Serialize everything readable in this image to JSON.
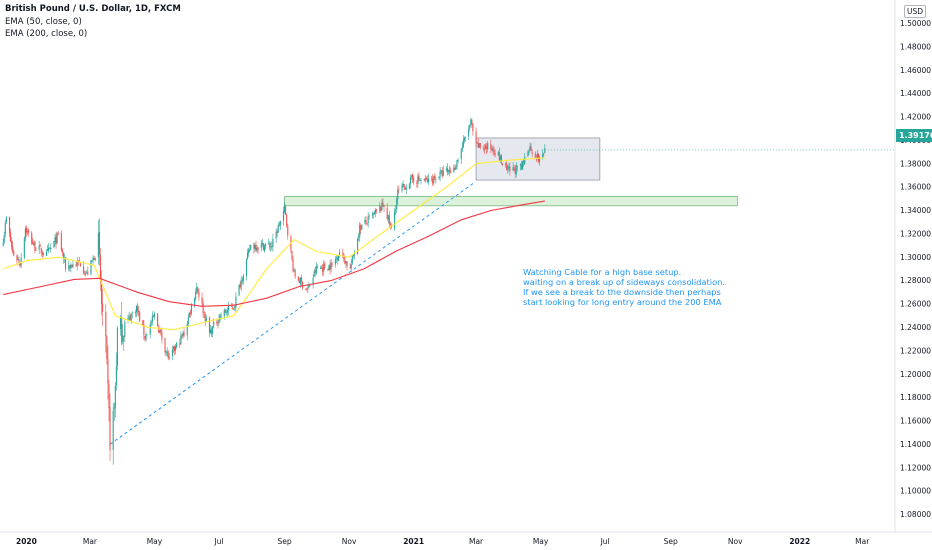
{
  "header": {
    "title": "British Pound / U.S. Dollar, 1D, FXCM",
    "indicator_1": "EMA (50, close, 0)",
    "indicator_2": "EMA (200, close, 0)",
    "currency_badge": "USD"
  },
  "annotation": {
    "line_1": "Watching Cable for a high base setup.",
    "line_2": "waiting on a break up of sideways consolidation.",
    "line_3": "If we see a break to the downside then perhaps",
    "line_4": "start looking for long entry around the 200 EMA"
  },
  "last_price": "1.39176",
  "colors": {
    "up": "#26a69a",
    "down": "#ef5350",
    "ema50": "#ffeb3b",
    "ema200": "#f23645",
    "trendline": "#2196f3",
    "zone_box": "#e3e6ee",
    "support_zone": "#d8efd6",
    "price_tag": "#26a69a"
  },
  "chart_data": {
    "type": "candlestick",
    "title": "British Pound / U.S. Dollar, 1D, FXCM",
    "x_ticks": [
      "2020",
      "Mar",
      "May",
      "Jul",
      "Sep",
      "Nov",
      "2021",
      "Mar",
      "May",
      "Jul",
      "Sep",
      "Nov",
      "2022",
      "Mar"
    ],
    "y_ticks": [
      "1.08000",
      "1.10000",
      "1.12000",
      "1.14000",
      "1.16000",
      "1.18000",
      "1.20000",
      "1.22000",
      "1.24000",
      "1.26000",
      "1.28000",
      "1.30000",
      "1.32000",
      "1.34000",
      "1.36000",
      "1.38000",
      "1.40000",
      "1.42000",
      "1.44000",
      "1.46000",
      "1.48000",
      "1.50000"
    ],
    "ylim": [
      1.065,
      1.52
    ],
    "xlim": [
      "2019-12-07",
      "2022-04-01"
    ],
    "close_path": [
      [
        "2019-12-10",
        1.316
      ],
      [
        "2019-12-13",
        1.333
      ],
      [
        "2019-12-19",
        1.304
      ],
      [
        "2019-12-26",
        1.295
      ],
      [
        "2019-12-31",
        1.325
      ],
      [
        "2020-01-08",
        1.31
      ],
      [
        "2020-01-20",
        1.302
      ],
      [
        "2020-01-31",
        1.318
      ],
      [
        "2020-02-07",
        1.292
      ],
      [
        "2020-02-21",
        1.295
      ],
      [
        "2020-02-27",
        1.285
      ],
      [
        "2020-03-09",
        1.31
      ],
      [
        "2020-03-12",
        1.26
      ],
      [
        "2020-03-16",
        1.22
      ],
      [
        "2020-03-20",
        1.145
      ],
      [
        "2020-03-24",
        1.17
      ],
      [
        "2020-03-27",
        1.235
      ],
      [
        "2020-04-01",
        1.24
      ],
      [
        "2020-04-14",
        1.257
      ],
      [
        "2020-04-22",
        1.232
      ],
      [
        "2020-05-01",
        1.25
      ],
      [
        "2020-05-15",
        1.212
      ],
      [
        "2020-05-18",
        1.218
      ],
      [
        "2020-05-29",
        1.235
      ],
      [
        "2020-06-10",
        1.275
      ],
      [
        "2020-06-22",
        1.235
      ],
      [
        "2020-07-02",
        1.25
      ],
      [
        "2020-07-15",
        1.258
      ],
      [
        "2020-07-31",
        1.31
      ],
      [
        "2020-08-20",
        1.31
      ],
      [
        "2020-09-01",
        1.341
      ],
      [
        "2020-09-10",
        1.285
      ],
      [
        "2020-09-23",
        1.272
      ],
      [
        "2020-10-01",
        1.29
      ],
      [
        "2020-10-16",
        1.293
      ],
      [
        "2020-10-23",
        1.305
      ],
      [
        "2020-11-02",
        1.29
      ],
      [
        "2020-11-11",
        1.325
      ],
      [
        "2020-11-23",
        1.335
      ],
      [
        "2020-12-04",
        1.345
      ],
      [
        "2020-12-11",
        1.323
      ],
      [
        "2020-12-17",
        1.355
      ],
      [
        "2020-12-31",
        1.367
      ],
      [
        "2021-01-15",
        1.365
      ],
      [
        "2021-01-29",
        1.372
      ],
      [
        "2021-02-08",
        1.375
      ],
      [
        "2021-02-24",
        1.415
      ],
      [
        "2021-03-01",
        1.395
      ],
      [
        "2021-03-18",
        1.393
      ],
      [
        "2021-03-30",
        1.374
      ],
      [
        "2021-04-13",
        1.376
      ],
      [
        "2021-04-20",
        1.395
      ],
      [
        "2021-04-30",
        1.383
      ],
      [
        "2021-05-05",
        1.392
      ]
    ],
    "ema_50": [
      [
        "2019-12-10",
        1.29
      ],
      [
        "2020-01-01",
        1.297
      ],
      [
        "2020-02-01",
        1.3
      ],
      [
        "2020-03-05",
        1.293
      ],
      [
        "2020-03-25",
        1.25
      ],
      [
        "2020-04-25",
        1.24
      ],
      [
        "2020-05-20",
        1.238
      ],
      [
        "2020-06-20",
        1.245
      ],
      [
        "2020-07-15",
        1.25
      ],
      [
        "2020-08-15",
        1.29
      ],
      [
        "2020-09-10",
        1.315
      ],
      [
        "2020-10-01",
        1.305
      ],
      [
        "2020-11-01",
        1.3
      ],
      [
        "2020-12-01",
        1.32
      ],
      [
        "2021-01-01",
        1.34
      ],
      [
        "2021-02-01",
        1.36
      ],
      [
        "2021-03-01",
        1.38
      ],
      [
        "2021-04-01",
        1.383
      ],
      [
        "2021-05-05",
        1.385
      ]
    ],
    "ema_200": [
      [
        "2019-12-10",
        1.268
      ],
      [
        "2020-01-15",
        1.275
      ],
      [
        "2020-02-15",
        1.281
      ],
      [
        "2020-03-10",
        1.282
      ],
      [
        "2020-04-15",
        1.27
      ],
      [
        "2020-05-15",
        1.262
      ],
      [
        "2020-06-15",
        1.258
      ],
      [
        "2020-07-15",
        1.259
      ],
      [
        "2020-08-15",
        1.265
      ],
      [
        "2020-09-15",
        1.275
      ],
      [
        "2020-10-15",
        1.28
      ],
      [
        "2020-11-15",
        1.29
      ],
      [
        "2020-12-15",
        1.305
      ],
      [
        "2021-01-15",
        1.318
      ],
      [
        "2021-02-15",
        1.332
      ],
      [
        "2021-03-15",
        1.34
      ],
      [
        "2021-04-15",
        1.345
      ],
      [
        "2021-05-05",
        1.348
      ]
    ],
    "trendline": {
      "from": [
        "2020-03-20",
        1.14
      ],
      "to": [
        "2021-02-26",
        1.363
      ]
    },
    "consolidation_box": {
      "x0": "2021-03-01",
      "x1": "2021-06-26",
      "y0": 1.366,
      "y1": 1.402
    },
    "support_zone": {
      "x0": "2020-09-01",
      "x1": "2021-11-03",
      "y0": 1.344,
      "y1": 1.352
    },
    "last_price": 1.39176
  }
}
